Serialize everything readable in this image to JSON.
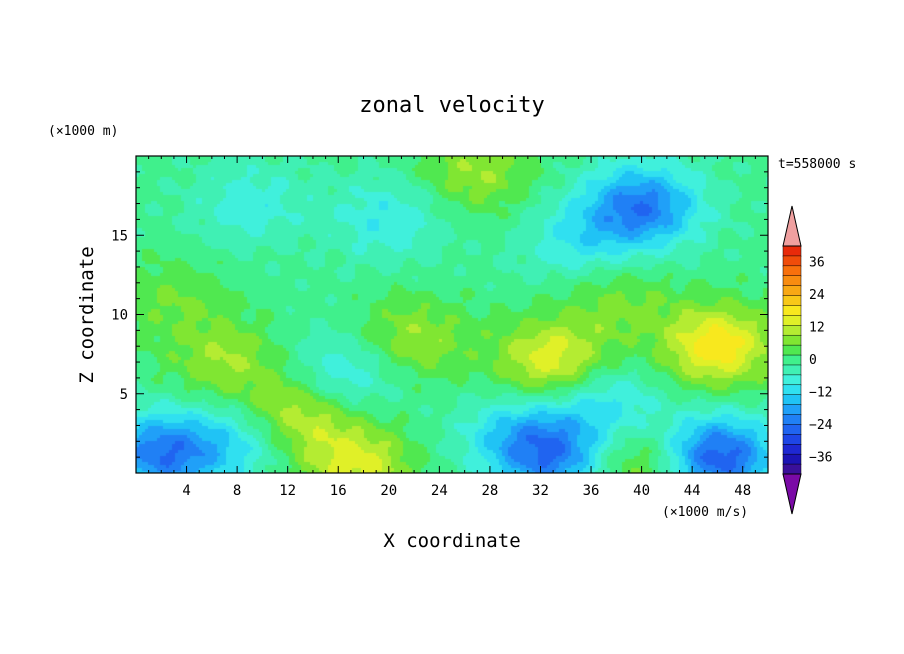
{
  "chart_data": {
    "type": "heatmap",
    "title": "zonal velocity",
    "xlabel": "X coordinate",
    "ylabel": "Z coordinate",
    "y_unit_label": "(×1000 m)",
    "x_unit_label": "(×1000 m/s)",
    "time_label": "t=558000 s",
    "xlim": [
      0,
      50
    ],
    "ylim": [
      0,
      20
    ],
    "x_ticks": [
      "4",
      "8",
      "12",
      "16",
      "20",
      "24",
      "28",
      "32",
      "36",
      "40",
      "44",
      "48"
    ],
    "y_ticks": [
      "5",
      "10",
      "15"
    ],
    "colorbar": {
      "levels": [
        -42,
        -39,
        -36,
        -33,
        -30,
        -27,
        -24,
        -21,
        -18,
        -15,
        -12,
        -9,
        -6,
        -3,
        0,
        3,
        6,
        9,
        12,
        15,
        18,
        21,
        24,
        27,
        30,
        33,
        36,
        39,
        42
      ],
      "colors": [
        "#7a0aa6",
        "#3a109a",
        "#1c14b4",
        "#1e28d2",
        "#1e46e6",
        "#2064f0",
        "#2080f5",
        "#20a0f8",
        "#20c3f5",
        "#30e0f0",
        "#40f0dc",
        "#40f0b4",
        "#40f08c",
        "#50e850",
        "#80e632",
        "#b4ec32",
        "#e0f028",
        "#f8e81e",
        "#f8c818",
        "#f8a814",
        "#f88c10",
        "#f8700c",
        "#f04c0a",
        "#e82a0a",
        "#f0a0a0"
      ],
      "tick_labels": [
        "36",
        "24",
        "12",
        "0",
        "−12",
        "−24",
        "−36"
      ]
    },
    "blobs": [
      {
        "x": 7,
        "z": 7,
        "v": 8
      },
      {
        "x": 13,
        "z": 3.8,
        "v": 12
      },
      {
        "x": 17.5,
        "z": 0.5,
        "v": 12
      },
      {
        "x": 22,
        "z": 8.5,
        "v": 8
      },
      {
        "x": 33,
        "z": 7,
        "v": 14
      },
      {
        "x": 46,
        "z": 8,
        "v": 16
      },
      {
        "x": 40,
        "z": 0.6,
        "v": 9
      },
      {
        "x": 27,
        "z": 19,
        "v": 8
      },
      {
        "x": 38,
        "z": 11,
        "v": 6
      },
      {
        "x": 3,
        "z": 11,
        "v": 5
      },
      {
        "x": 2,
        "z": 1.2,
        "v": -18
      },
      {
        "x": 46,
        "z": 1,
        "v": -22
      },
      {
        "x": 33,
        "z": 1,
        "v": -16
      },
      {
        "x": 40,
        "z": 16.8,
        "v": -18
      },
      {
        "x": 16,
        "z": 6,
        "v": -9
      },
      {
        "x": 30,
        "z": 2.5,
        "v": -8
      },
      {
        "x": 37,
        "z": 4.5,
        "v": -9
      },
      {
        "x": 8,
        "z": 2,
        "v": -8
      },
      {
        "x": 20,
        "z": 16,
        "v": -7
      },
      {
        "x": 35,
        "z": 14.5,
        "v": -7
      },
      {
        "x": 9,
        "z": 17,
        "v": -6
      }
    ]
  }
}
